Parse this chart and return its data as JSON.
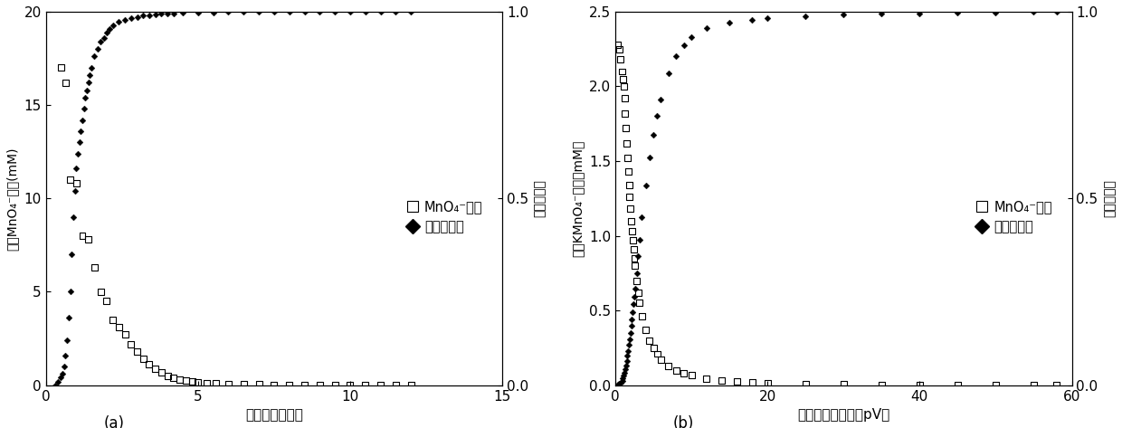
{
  "panel_a": {
    "title_label": "(a)",
    "xlabel": "过水柱孔隙体积",
    "ylabel_left": "出水MnO₄⁻浓度(mM)",
    "ylabel_right": "释放百分比",
    "xlim": [
      0,
      15
    ],
    "ylim_left": [
      0,
      20
    ],
    "ylim_right": [
      0,
      1
    ],
    "xticks": [
      0,
      5,
      10,
      15
    ],
    "yticks_left": [
      0,
      5,
      10,
      15,
      20
    ],
    "yticks_right": [
      0,
      0.5,
      1
    ],
    "conc_x": [
      0.5,
      0.65,
      0.8,
      1.0,
      1.2,
      1.4,
      1.6,
      1.8,
      2.0,
      2.2,
      2.4,
      2.6,
      2.8,
      3.0,
      3.2,
      3.4,
      3.6,
      3.8,
      4.0,
      4.2,
      4.4,
      4.6,
      4.8,
      5.0,
      5.3,
      5.6,
      6.0,
      6.5,
      7.0,
      7.5,
      8.0,
      8.5,
      9.0,
      9.5,
      10.0,
      10.5,
      11.0,
      11.5,
      12.0
    ],
    "conc_y": [
      17.0,
      16.2,
      11.0,
      10.8,
      8.0,
      7.8,
      6.3,
      5.0,
      4.5,
      3.5,
      3.1,
      2.7,
      2.2,
      1.8,
      1.4,
      1.1,
      0.9,
      0.7,
      0.5,
      0.4,
      0.3,
      0.25,
      0.2,
      0.15,
      0.12,
      0.1,
      0.07,
      0.05,
      0.04,
      0.03,
      0.03,
      0.03,
      0.02,
      0.02,
      0.02,
      0.02,
      0.02,
      0.02,
      0.02
    ],
    "release_x_dense": [
      0.3,
      0.4,
      0.5,
      0.55,
      0.6,
      0.65,
      0.7,
      0.75,
      0.8,
      0.85,
      0.9,
      0.95,
      1.0,
      1.05,
      1.1,
      1.15,
      1.2,
      1.25,
      1.3,
      1.35,
      1.4,
      1.45,
      1.5,
      1.6,
      1.7,
      1.8,
      1.9,
      2.0,
      2.1,
      2.2,
      2.4,
      2.6,
      2.8,
      3.0,
      3.2,
      3.4,
      3.6,
      3.8,
      4.0,
      4.2,
      4.5,
      5.0,
      5.5,
      6.0,
      6.5,
      7.0,
      7.5,
      8.0,
      8.5,
      9.0,
      9.5,
      10.0,
      10.5,
      11.0,
      11.5,
      12.0
    ],
    "release_y_dense": [
      0.0,
      0.01,
      0.02,
      0.03,
      0.05,
      0.08,
      0.12,
      0.18,
      0.25,
      0.35,
      0.45,
      0.52,
      0.58,
      0.62,
      0.65,
      0.68,
      0.71,
      0.74,
      0.77,
      0.79,
      0.81,
      0.83,
      0.85,
      0.88,
      0.9,
      0.92,
      0.93,
      0.945,
      0.955,
      0.963,
      0.972,
      0.978,
      0.983,
      0.986,
      0.989,
      0.991,
      0.993,
      0.994,
      0.995,
      0.996,
      0.997,
      0.998,
      0.998,
      0.999,
      0.999,
      0.999,
      0.999,
      0.999,
      0.999,
      0.999,
      0.999,
      0.999,
      0.999,
      0.999,
      0.999,
      0.999
    ],
    "legend_conc": "MnO₄⁻浓度",
    "legend_release": "释放百分比"
  },
  "panel_b": {
    "title_label": "(b)",
    "xlabel": "过水柱孔隙体积（pV）",
    "ylabel_left": "出水KMnO₄⁻浓度（mM）",
    "ylabel_right": "释放百分比",
    "xlim": [
      0,
      60
    ],
    "ylim_left": [
      0,
      2.5
    ],
    "ylim_right": [
      0,
      1
    ],
    "xticks": [
      0,
      20,
      40,
      60
    ],
    "yticks_left": [
      0,
      0.5,
      1.0,
      1.5,
      2.0,
      2.5
    ],
    "yticks_right": [
      0,
      0.5,
      1
    ],
    "conc_x": [
      0.3,
      0.5,
      0.7,
      0.9,
      1.0,
      1.1,
      1.2,
      1.3,
      1.4,
      1.5,
      1.6,
      1.7,
      1.8,
      1.9,
      2.0,
      2.1,
      2.2,
      2.3,
      2.4,
      2.5,
      2.6,
      2.8,
      3.0,
      3.2,
      3.5,
      4.0,
      4.5,
      5.0,
      5.5,
      6.0,
      7.0,
      8.0,
      9.0,
      10.0,
      12.0,
      14.0,
      16.0,
      18.0,
      20.0,
      25.0,
      30.0,
      35.0,
      40.0,
      45.0,
      50.0,
      55.0,
      58.0
    ],
    "conc_y": [
      2.28,
      2.25,
      2.18,
      2.1,
      2.05,
      2.0,
      1.92,
      1.82,
      1.72,
      1.62,
      1.52,
      1.43,
      1.34,
      1.26,
      1.18,
      1.1,
      1.03,
      0.97,
      0.91,
      0.85,
      0.8,
      0.7,
      0.62,
      0.55,
      0.46,
      0.37,
      0.3,
      0.25,
      0.21,
      0.17,
      0.13,
      0.1,
      0.08,
      0.065,
      0.045,
      0.032,
      0.025,
      0.018,
      0.014,
      0.008,
      0.005,
      0.004,
      0.003,
      0.002,
      0.002,
      0.001,
      0.001
    ],
    "release_x_dense": [
      0.3,
      0.5,
      0.7,
      0.9,
      1.0,
      1.1,
      1.2,
      1.3,
      1.4,
      1.5,
      1.6,
      1.7,
      1.8,
      1.9,
      2.0,
      2.1,
      2.2,
      2.3,
      2.4,
      2.5,
      2.6,
      2.8,
      3.0,
      3.2,
      3.5,
      4.0,
      4.5,
      5.0,
      5.5,
      6.0,
      7.0,
      8.0,
      9.0,
      10.0,
      12.0,
      15.0,
      18.0,
      20.0,
      25.0,
      30.0,
      35.0,
      40.0,
      45.0,
      50.0,
      55.0,
      58.0
    ],
    "release_y_dense": [
      0.001,
      0.003,
      0.006,
      0.012,
      0.018,
      0.025,
      0.033,
      0.042,
      0.053,
      0.065,
      0.078,
      0.092,
      0.107,
      0.123,
      0.14,
      0.158,
      0.177,
      0.196,
      0.216,
      0.237,
      0.258,
      0.3,
      0.345,
      0.39,
      0.45,
      0.535,
      0.61,
      0.67,
      0.72,
      0.765,
      0.835,
      0.88,
      0.91,
      0.932,
      0.957,
      0.97,
      0.978,
      0.982,
      0.988,
      0.992,
      0.994,
      0.996,
      0.997,
      0.998,
      0.999,
      0.999
    ],
    "legend_conc": "MnO₄⁻浓度",
    "legend_release": "释放百分比"
  }
}
